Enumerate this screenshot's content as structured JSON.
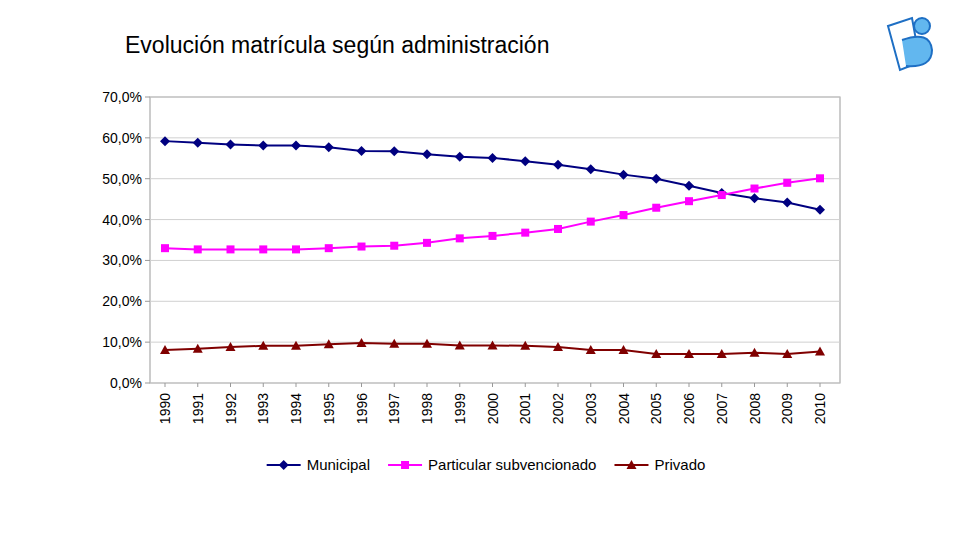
{
  "chart_data": {
    "type": "line",
    "title": "Evolución matrícula según administración",
    "categories": [
      "1990",
      "1991",
      "1992",
      "1993",
      "1994",
      "1995",
      "1996",
      "1997",
      "1998",
      "1999",
      "2000",
      "2001",
      "2002",
      "2003",
      "2004",
      "2005",
      "2006",
      "2007",
      "2008",
      "2009",
      "2010"
    ],
    "series": [
      {
        "name": "Municipal",
        "color": "#000080",
        "marker": "diamond",
        "values": [
          59.2,
          58.8,
          58.4,
          58.1,
          58.1,
          57.7,
          56.8,
          56.7,
          56.0,
          55.4,
          55.1,
          54.3,
          53.4,
          52.3,
          51.0,
          50.0,
          48.3,
          46.5,
          45.2,
          44.2,
          42.4
        ]
      },
      {
        "name": "Particular subvencionado",
        "color": "#ff00ff",
        "marker": "square",
        "values": [
          33.0,
          32.7,
          32.7,
          32.7,
          32.7,
          33.0,
          33.4,
          33.6,
          34.3,
          35.4,
          36.0,
          36.8,
          37.7,
          39.5,
          41.1,
          42.9,
          44.5,
          46.0,
          47.6,
          49.0,
          50.1
        ]
      },
      {
        "name": "Privado",
        "color": "#800000",
        "marker": "triangle",
        "values": [
          8.1,
          8.4,
          8.8,
          9.1,
          9.1,
          9.5,
          9.8,
          9.6,
          9.6,
          9.2,
          9.2,
          9.1,
          8.8,
          8.1,
          8.1,
          7.1,
          7.1,
          7.1,
          7.4,
          7.1,
          7.7
        ]
      }
    ],
    "ylim": [
      0,
      70
    ],
    "yticks": [
      {
        "value": 0,
        "label": "0,0%"
      },
      {
        "value": 10,
        "label": "10,0%"
      },
      {
        "value": 20,
        "label": "20,0%"
      },
      {
        "value": 30,
        "label": "30,0%"
      },
      {
        "value": 40,
        "label": "40,0%"
      },
      {
        "value": 50,
        "label": "50,0%"
      },
      {
        "value": 60,
        "label": "60,0%"
      },
      {
        "value": 70,
        "label": "70,0%"
      }
    ],
    "grid": true,
    "legend": "bottom"
  }
}
